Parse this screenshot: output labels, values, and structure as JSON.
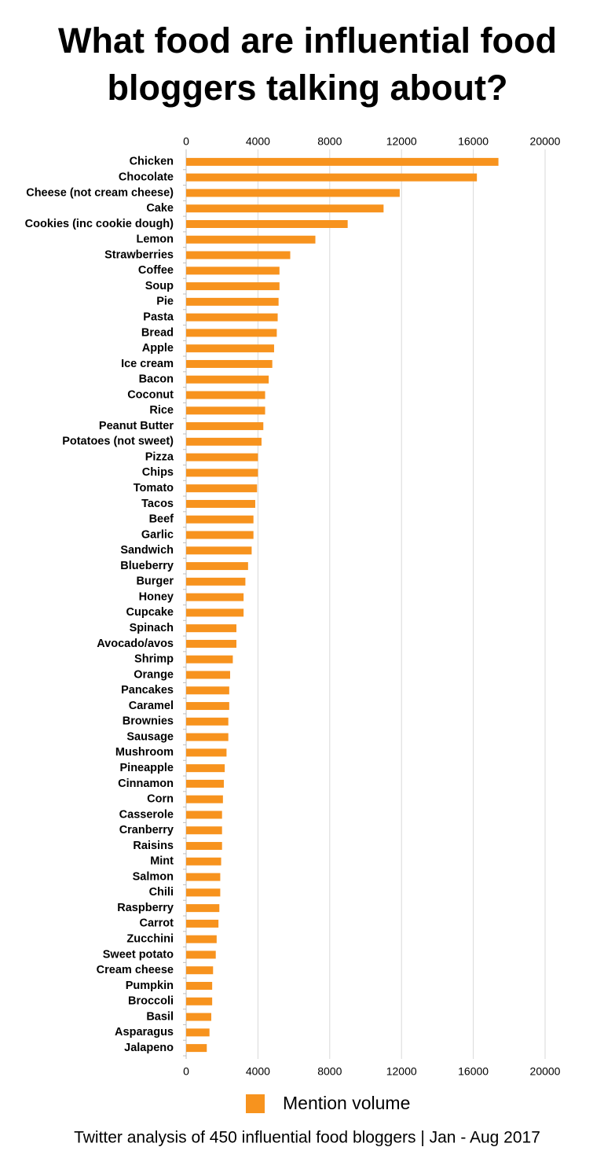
{
  "chart_data": {
    "type": "hbar",
    "title": "What food are influential food bloggers talking about?",
    "footnote": "Twitter analysis of 450 influential food bloggers | Jan - Aug 2017",
    "categories": [
      "Chicken",
      "Chocolate",
      "Cheese (not cream cheese)",
      "Cake",
      "Cookies (inc cookie dough)",
      "Lemon",
      "Strawberries",
      "Coffee",
      "Soup",
      "Pie",
      "Pasta",
      "Bread",
      "Apple",
      "Ice cream",
      "Bacon",
      "Coconut",
      "Rice",
      "Peanut Butter",
      "Potatoes (not sweet)",
      "Pizza",
      "Chips",
      "Tomato",
      "Tacos",
      "Beef",
      "Garlic",
      "Sandwich",
      "Blueberry",
      "Burger",
      "Honey",
      "Cupcake",
      "Spinach",
      "Avocado/avos",
      "Shrimp",
      "Orange",
      "Pancakes",
      "Caramel",
      "Brownies",
      "Sausage",
      "Mushroom",
      "Pineapple",
      "Cinnamon",
      "Corn",
      "Casserole",
      "Cranberry",
      "Raisins",
      "Mint",
      "Salmon",
      "Chili",
      "Raspberry",
      "Carrot",
      "Zucchini",
      "Sweet potato",
      "Cream cheese",
      "Pumpkin",
      "Broccoli",
      "Basil",
      "Asparagus",
      "Jalapeno"
    ],
    "series": [
      {
        "name": "Mention volume",
        "color": "#f7931e",
        "values": [
          17400,
          16200,
          11900,
          11000,
          9000,
          7200,
          5800,
          5200,
          5200,
          5150,
          5100,
          5050,
          4900,
          4800,
          4600,
          4400,
          4400,
          4300,
          4200,
          4000,
          4000,
          3950,
          3850,
          3750,
          3750,
          3650,
          3450,
          3300,
          3200,
          3200,
          2800,
          2800,
          2600,
          2450,
          2400,
          2400,
          2350,
          2350,
          2250,
          2150,
          2100,
          2050,
          2000,
          2000,
          2000,
          1950,
          1900,
          1900,
          1850,
          1800,
          1700,
          1650,
          1500,
          1450,
          1450,
          1400,
          1300,
          1150
        ]
      }
    ],
    "xlim": [
      0,
      20000
    ],
    "xticks": [
      0,
      4000,
      8000,
      12000,
      16000,
      20000
    ],
    "grid": true,
    "legend": "bottom"
  }
}
